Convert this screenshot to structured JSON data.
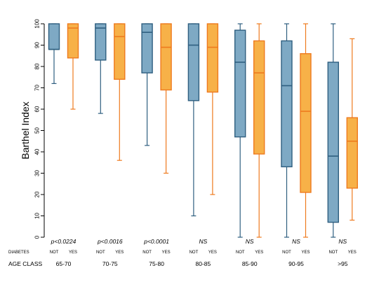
{
  "chart_data": {
    "type": "box",
    "ylabel": "Barthel Index",
    "ylim": [
      0,
      100
    ],
    "yticks": [
      0,
      10,
      20,
      30,
      40,
      50,
      60,
      70,
      80,
      90,
      100
    ],
    "grid": false,
    "diabetes_row_label": "DIABETES",
    "age_row_label": "AGE CLASS",
    "categories": [
      "65-70",
      "70-75",
      "75-80",
      "80-85",
      "85-90",
      "90-95",
      ">95"
    ],
    "p_values": [
      "p<0.0224",
      "p<0.0016",
      "p<0.0001",
      "NS",
      "NS",
      "NS",
      "NS"
    ],
    "series": [
      {
        "name": "NOT",
        "color": "#7ea9c4",
        "edge_color": "#2f5f80",
        "boxes": [
          {
            "min": 72,
            "q1": 88,
            "median": 88,
            "q3": 100,
            "max": 100
          },
          {
            "min": 58,
            "q1": 83,
            "median": 98,
            "q3": 100,
            "max": 100
          },
          {
            "min": 43,
            "q1": 77,
            "median": 96,
            "q3": 100,
            "max": 100
          },
          {
            "min": 10,
            "q1": 64,
            "median": 90,
            "q3": 100,
            "max": 100
          },
          {
            "min": 0,
            "q1": 47,
            "median": 82,
            "q3": 97,
            "max": 100
          },
          {
            "min": 0,
            "q1": 33,
            "median": 71,
            "q3": 92,
            "max": 100
          },
          {
            "min": 0,
            "q1": 7,
            "median": 38,
            "q3": 82,
            "max": 100
          }
        ]
      },
      {
        "name": "YES",
        "color": "#f7b148",
        "edge_color": "#ee7a1e",
        "boxes": [
          {
            "min": 60,
            "q1": 84,
            "median": 98,
            "q3": 100,
            "max": 100
          },
          {
            "min": 36,
            "q1": 74,
            "median": 94,
            "q3": 100,
            "max": 100
          },
          {
            "min": 30,
            "q1": 69,
            "median": 89,
            "q3": 100,
            "max": 100
          },
          {
            "min": 20,
            "q1": 68,
            "median": 89,
            "q3": 100,
            "max": 100
          },
          {
            "min": 0,
            "q1": 39,
            "median": 77,
            "q3": 92,
            "max": 100
          },
          {
            "min": 0,
            "q1": 21,
            "median": 59,
            "q3": 86,
            "max": 100
          },
          {
            "min": 8,
            "q1": 23,
            "median": 45,
            "q3": 56,
            "max": 93
          }
        ]
      }
    ]
  }
}
